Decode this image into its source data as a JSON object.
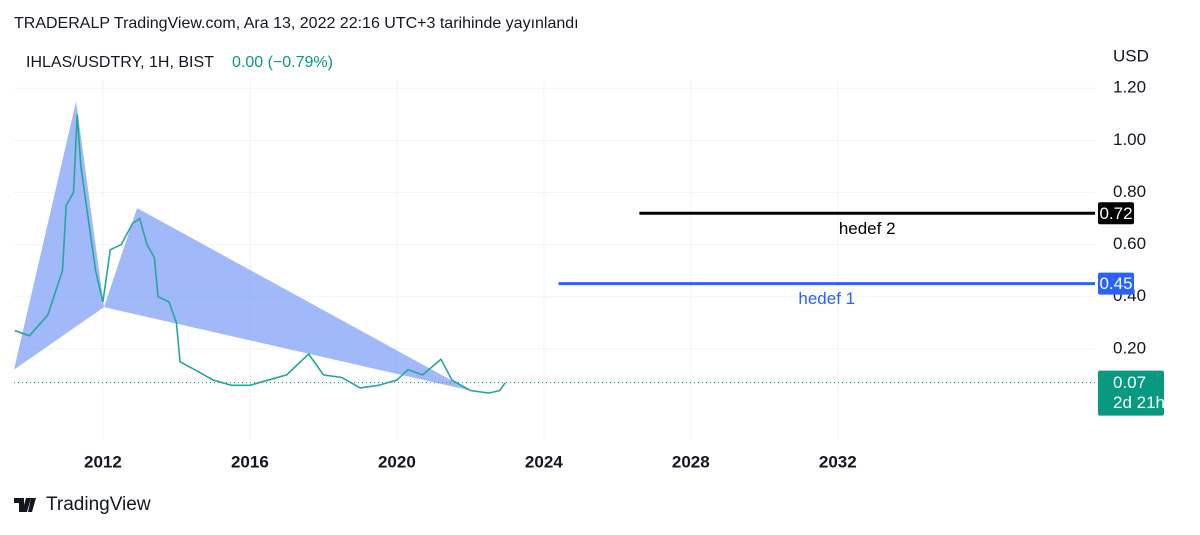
{
  "header": "TRADERALP TradingView.com, Ara 13, 2022 22:16 UTC+3 tarihinde yayınlandı",
  "footer": "TradingView",
  "chart_data": {
    "type": "line",
    "symbol": "IHLAS/USDTRY, 1H, BIST",
    "change": "0.00 (−0.79%)",
    "currency": "USD",
    "xlim": [
      2009.58,
      2039
    ],
    "xticks": [
      2012,
      2016,
      2020,
      2024,
      2028,
      2032
    ],
    "ylim": [
      -0.15,
      1.27
    ],
    "yticks": [
      {
        "value": 0.2,
        "label": "0.20"
      },
      {
        "value": 0.4,
        "label": "0.40"
      },
      {
        "value": 0.6,
        "label": "0.60"
      },
      {
        "value": 0.8,
        "label": "0.80"
      },
      {
        "value": 1.0,
        "label": "1.00"
      },
      {
        "value": 1.2,
        "label": "1.20"
      }
    ],
    "grid": true,
    "series": [
      {
        "name": "IHLAS/USDTRY",
        "color": "#26a69a",
        "x": [
          2009.6,
          2010.0,
          2010.5,
          2010.9,
          2011.0,
          2011.2,
          2011.3,
          2011.4,
          2011.6,
          2011.8,
          2012.0,
          2012.2,
          2012.5,
          2012.8,
          2013.0,
          2013.2,
          2013.4,
          2013.5,
          2013.8,
          2014.0,
          2014.1,
          2014.5,
          2015.0,
          2015.5,
          2016.0,
          2016.5,
          2017.0,
          2017.6,
          2018.0,
          2018.5,
          2019.0,
          2019.5,
          2020.0,
          2020.3,
          2020.7,
          2021.2,
          2021.5,
          2022.0,
          2022.5,
          2022.8,
          2022.95
        ],
        "values": [
          0.27,
          0.25,
          0.33,
          0.5,
          0.75,
          0.8,
          1.1,
          0.9,
          0.7,
          0.5,
          0.38,
          0.58,
          0.6,
          0.68,
          0.7,
          0.6,
          0.55,
          0.4,
          0.38,
          0.3,
          0.15,
          0.12,
          0.08,
          0.06,
          0.06,
          0.08,
          0.1,
          0.18,
          0.1,
          0.09,
          0.05,
          0.06,
          0.08,
          0.12,
          0.1,
          0.16,
          0.08,
          0.04,
          0.03,
          0.04,
          0.07
        ]
      }
    ],
    "pattern": {
      "color": "#6f94f5",
      "points": [
        {
          "x": 2009.58,
          "y": 0.12
        },
        {
          "x": 2011.27,
          "y": 1.15
        },
        {
          "x": 2012.03,
          "y": 0.36
        },
        {
          "x": 2012.93,
          "y": 0.74
        },
        {
          "x": 2021.99,
          "y": 0.04
        }
      ]
    },
    "levels": [
      {
        "name": "hedef 2",
        "value": 0.72,
        "start": 2026.6,
        "color": "#000000"
      },
      {
        "name": "hedef 1",
        "value": 0.45,
        "start": 2024.4,
        "color": "#2962ff"
      }
    ],
    "last_price": 0.07,
    "countdown": "2d 21h",
    "last_color": "#089981"
  }
}
